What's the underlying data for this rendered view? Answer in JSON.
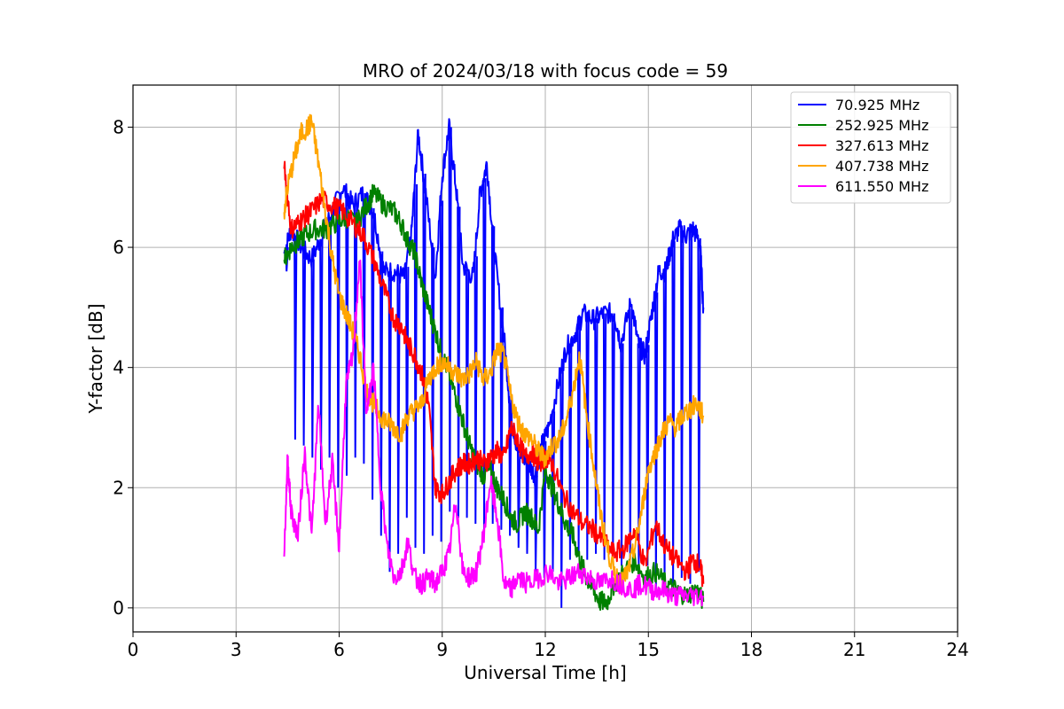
{
  "chart_data": {
    "type": "line",
    "title": "MRO of 2024/03/18 with focus code = 59",
    "xlabel": "Universal Time [h]",
    "ylabel": "Y-factor [dB]",
    "xlim": [
      0,
      24
    ],
    "ylim": [
      -0.4,
      8.7
    ],
    "xticks": [
      0,
      3,
      6,
      9,
      12,
      15,
      18,
      21,
      24
    ],
    "yticks": [
      0,
      2,
      4,
      6,
      8
    ],
    "grid": true,
    "legend_position": "top-right",
    "series": [
      {
        "name": "  70.925 MHz",
        "color": "#0000ff",
        "x": [
          4.4,
          4.6,
          4.9,
          5.2,
          5.5,
          5.8,
          6.1,
          6.4,
          6.7,
          7.0,
          7.3,
          7.6,
          7.9,
          8.1,
          8.3,
          8.5,
          8.8,
          9.0,
          9.2,
          9.4,
          9.6,
          9.9,
          10.1,
          10.3,
          10.5,
          10.8,
          11.0,
          11.2,
          11.5,
          11.7,
          11.9,
          12.1,
          12.4,
          12.6,
          12.9,
          13.1,
          13.4,
          13.7,
          14.0,
          14.2,
          14.5,
          14.7,
          14.9,
          15.1,
          15.3,
          15.5,
          15.7,
          15.9,
          16.1,
          16.3,
          16.5,
          16.6
        ],
        "y": [
          5.9,
          6.3,
          6.0,
          5.8,
          6.2,
          6.6,
          7.0,
          6.7,
          6.9,
          6.6,
          5.6,
          5.6,
          5.5,
          6.2,
          7.9,
          7.0,
          5.5,
          7.2,
          8.0,
          7.0,
          5.7,
          5.5,
          6.9,
          7.4,
          6.0,
          4.5,
          3.2,
          2.6,
          2.4,
          2.2,
          2.7,
          3.0,
          3.8,
          4.3,
          4.6,
          4.9,
          4.8,
          4.9,
          4.9,
          4.4,
          5.1,
          4.4,
          4.2,
          4.9,
          5.6,
          5.6,
          6.1,
          6.3,
          6.2,
          6.3,
          6.1,
          5.0
        ],
        "x_dips": [
          4.45,
          4.7,
          4.95,
          5.2,
          5.45,
          5.7,
          5.95,
          6.2,
          6.45,
          6.7,
          6.95,
          7.2,
          7.45,
          7.7,
          7.95,
          8.2,
          8.45,
          8.7,
          8.95,
          9.2,
          9.45,
          9.7,
          9.95,
          10.2,
          10.45,
          10.7,
          10.95,
          11.2,
          11.45,
          11.7,
          11.95,
          12.2,
          12.45,
          12.7,
          12.95,
          13.2,
          13.45,
          13.7,
          13.95,
          14.2,
          14.45,
          14.7,
          14.95,
          15.2,
          15.45,
          15.7,
          15.95,
          16.2,
          16.45
        ],
        "y_dips": [
          5.6,
          2.8,
          2.7,
          2.5,
          2.3,
          2.5,
          2.0,
          2.2,
          2.5,
          2.4,
          1.8,
          1.2,
          0.6,
          0.9,
          1.5,
          1.0,
          0.9,
          1.2,
          1.1,
          1.6,
          1.5,
          1.5,
          1.4,
          1.3,
          1.4,
          1.3,
          1.2,
          1.0,
          0.9,
          0.6,
          0.5,
          0.6,
          0.0,
          0.8,
          0.9,
          0.8,
          0.9,
          0.8,
          0.9,
          0.7,
          0.8,
          0.7,
          0.7,
          0.3,
          0.3,
          0.4,
          0.5,
          0.4,
          0.6
        ]
      },
      {
        "name": "252.925 MHz",
        "color": "#008000",
        "x": [
          4.4,
          4.6,
          4.8,
          5.0,
          5.3,
          5.6,
          5.9,
          6.2,
          6.5,
          6.8,
          7.0,
          7.3,
          7.6,
          7.8,
          8.0,
          8.2,
          8.4,
          8.6,
          8.8,
          9.0,
          9.2,
          9.4,
          9.6,
          9.8,
          10.0,
          10.2,
          10.4,
          10.6,
          10.8,
          11.0,
          11.2,
          11.4,
          11.6,
          11.8,
          12.0,
          12.2,
          12.4,
          12.6,
          12.8,
          13.0,
          13.2,
          13.4,
          13.6,
          13.8,
          14.0,
          14.3,
          14.6,
          14.9,
          15.2,
          15.5,
          15.8,
          16.1,
          16.4,
          16.6
        ],
        "y": [
          5.8,
          6.0,
          6.1,
          6.2,
          6.3,
          6.3,
          6.4,
          6.5,
          6.4,
          6.7,
          6.9,
          6.7,
          6.6,
          6.4,
          6.1,
          5.9,
          5.4,
          5.0,
          4.6,
          4.2,
          3.9,
          3.5,
          3.1,
          2.7,
          2.4,
          2.2,
          2.3,
          2.0,
          1.8,
          1.5,
          1.4,
          1.6,
          1.5,
          1.3,
          2.3,
          2.0,
          1.7,
          1.4,
          1.2,
          0.8,
          0.5,
          0.3,
          0.1,
          0.1,
          0.4,
          0.6,
          0.8,
          0.5,
          0.6,
          0.4,
          0.3,
          0.2,
          0.3,
          0.1
        ]
      },
      {
        "name": "327.613 MHz",
        "color": "#ff0000",
        "x": [
          4.4,
          4.6,
          4.8,
          5.0,
          5.2,
          5.5,
          5.8,
          6.1,
          6.4,
          6.7,
          7.0,
          7.3,
          7.6,
          7.8,
          8.0,
          8.2,
          8.4,
          8.6,
          8.8,
          9.0,
          9.2,
          9.4,
          9.6,
          9.8,
          10.0,
          10.2,
          10.4,
          10.6,
          10.8,
          11.0,
          11.2,
          11.4,
          11.6,
          11.8,
          12.0,
          12.2,
          12.5,
          12.8,
          13.1,
          13.4,
          13.7,
          14.0,
          14.3,
          14.6,
          14.9,
          15.2,
          15.5,
          15.8,
          16.1,
          16.3,
          16.5,
          16.6
        ],
        "y": [
          7.4,
          6.3,
          6.4,
          6.5,
          6.6,
          6.8,
          6.7,
          6.6,
          6.4,
          6.2,
          5.8,
          5.3,
          4.8,
          4.7,
          4.4,
          4.2,
          3.9,
          3.4,
          2.0,
          1.9,
          2.1,
          2.3,
          2.4,
          2.4,
          2.5,
          2.4,
          2.5,
          2.6,
          2.5,
          3.0,
          2.8,
          2.5,
          2.6,
          2.4,
          2.5,
          2.4,
          1.9,
          1.6,
          1.4,
          1.3,
          1.1,
          0.9,
          1.0,
          1.3,
          0.7,
          1.4,
          1.0,
          0.8,
          0.6,
          0.8,
          0.7,
          0.4
        ]
      },
      {
        "name": "407.738 MHz",
        "color": "#ffa500",
        "x": [
          4.4,
          4.5,
          4.7,
          4.9,
          5.1,
          5.2,
          5.4,
          5.6,
          5.8,
          6.0,
          6.2,
          6.4,
          6.6,
          6.8,
          7.0,
          7.2,
          7.4,
          7.6,
          7.8,
          8.0,
          8.2,
          8.4,
          8.6,
          8.8,
          9.0,
          9.2,
          9.4,
          9.6,
          9.8,
          10.0,
          10.2,
          10.4,
          10.6,
          10.8,
          11.0,
          11.2,
          11.4,
          11.6,
          11.8,
          12.0,
          12.2,
          12.4,
          12.6,
          12.8,
          13.0,
          13.2,
          13.4,
          13.6,
          13.8,
          14.0,
          14.2,
          14.4,
          14.6,
          14.8,
          15.0,
          15.2,
          15.4,
          15.6,
          15.8,
          16.0,
          16.2,
          16.4,
          16.6
        ],
        "y": [
          6.6,
          7.0,
          7.5,
          7.9,
          8.0,
          8.1,
          7.4,
          6.6,
          5.8,
          5.2,
          4.9,
          4.6,
          4.2,
          3.6,
          3.4,
          3.2,
          3.1,
          3.0,
          2.9,
          3.2,
          3.3,
          3.4,
          3.8,
          4.0,
          4.1,
          4.0,
          3.9,
          3.8,
          3.9,
          4.1,
          3.8,
          3.9,
          4.3,
          4.2,
          3.5,
          3.1,
          2.9,
          2.8,
          2.6,
          2.5,
          2.7,
          2.8,
          3.1,
          3.6,
          4.2,
          3.2,
          2.4,
          1.6,
          1.0,
          0.6,
          0.4,
          0.6,
          1.0,
          1.6,
          2.3,
          2.6,
          2.9,
          3.1,
          3.0,
          3.2,
          3.3,
          3.4,
          3.2
        ]
      },
      {
        "name": "611.550 MHz",
        "color": "#ff00ff",
        "x": [
          4.4,
          4.5,
          4.6,
          4.8,
          5.0,
          5.2,
          5.4,
          5.6,
          5.8,
          6.0,
          6.2,
          6.4,
          6.6,
          6.8,
          7.0,
          7.2,
          7.4,
          7.6,
          7.8,
          8.0,
          8.2,
          8.4,
          8.6,
          8.8,
          9.0,
          9.2,
          9.4,
          9.6,
          9.8,
          10.0,
          10.2,
          10.4,
          10.6,
          10.8,
          11.0,
          11.2,
          11.5,
          11.8,
          12.1,
          12.4,
          12.7,
          13.0,
          13.3,
          13.6,
          13.9,
          14.2,
          14.5,
          14.8,
          15.1,
          15.4,
          15.7,
          16.0,
          16.3,
          16.6
        ],
        "y": [
          0.9,
          2.5,
          1.6,
          1.2,
          2.6,
          1.2,
          3.4,
          1.4,
          2.4,
          1.0,
          3.7,
          4.2,
          5.8,
          3.2,
          4.0,
          2.1,
          1.0,
          0.5,
          0.6,
          1.1,
          0.5,
          0.4,
          0.5,
          0.4,
          0.6,
          0.9,
          1.8,
          0.6,
          0.5,
          0.6,
          1.2,
          2.1,
          1.5,
          0.4,
          0.3,
          0.5,
          0.4,
          0.5,
          0.6,
          0.4,
          0.5,
          0.6,
          0.5,
          0.4,
          0.5,
          0.4,
          0.3,
          0.4,
          0.3,
          0.3,
          0.2,
          0.2,
          0.2,
          0.2
        ]
      }
    ]
  }
}
